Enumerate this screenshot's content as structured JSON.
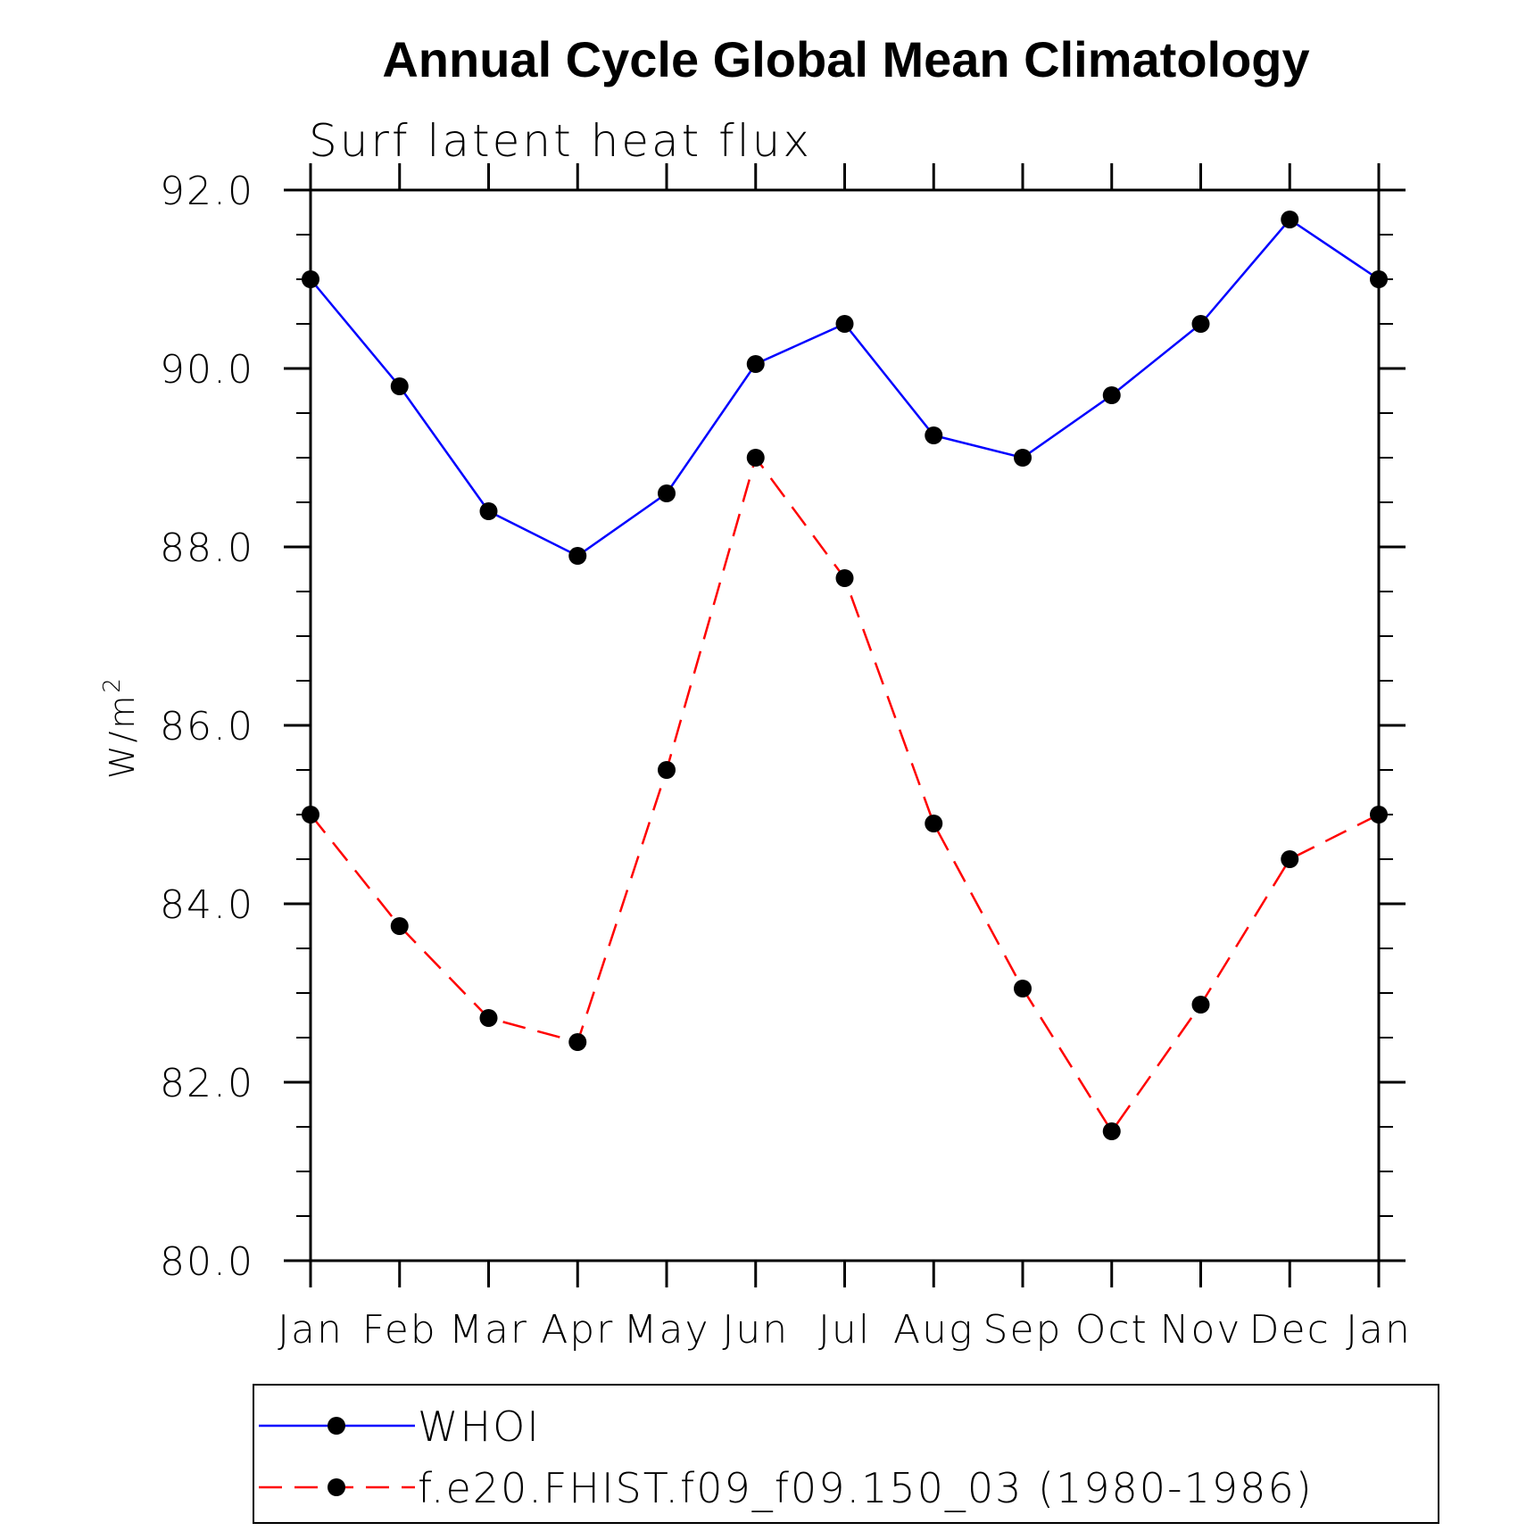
{
  "chart_data": {
    "type": "line",
    "title": "Annual Cycle Global Mean Climatology",
    "subtitle": "Surf latent heat flux",
    "ylabel": "W/m",
    "ylabel_superscript": "2",
    "ylim": [
      80.0,
      92.0
    ],
    "yticks": [
      "80.0",
      "82.0",
      "84.0",
      "86.0",
      "88.0",
      "90.0",
      "92.0"
    ],
    "categories": [
      "Jan",
      "Feb",
      "Mar",
      "Apr",
      "May",
      "Jun",
      "Jul",
      "Aug",
      "Sep",
      "Oct",
      "Nov",
      "Dec",
      "Jan"
    ],
    "grid": false,
    "legend_position": "bottom",
    "series": [
      {
        "name": "WHOI",
        "color": "#0000ff",
        "dash": "solid",
        "marker": "filled-circle",
        "values": [
          91.0,
          89.8,
          88.4,
          87.9,
          88.6,
          90.05,
          90.5,
          89.25,
          89.0,
          89.7,
          90.5,
          91.67,
          91.0
        ]
      },
      {
        "name": "f.e20.FHIST.f09_f09.150_03 (1980-1986)",
        "color": "#ff0000",
        "dash": "dashed",
        "marker": "filled-circle",
        "values": [
          85.0,
          83.75,
          82.72,
          82.45,
          85.5,
          89.0,
          87.65,
          84.9,
          83.05,
          81.45,
          82.87,
          84.5,
          85.0
        ]
      }
    ]
  }
}
